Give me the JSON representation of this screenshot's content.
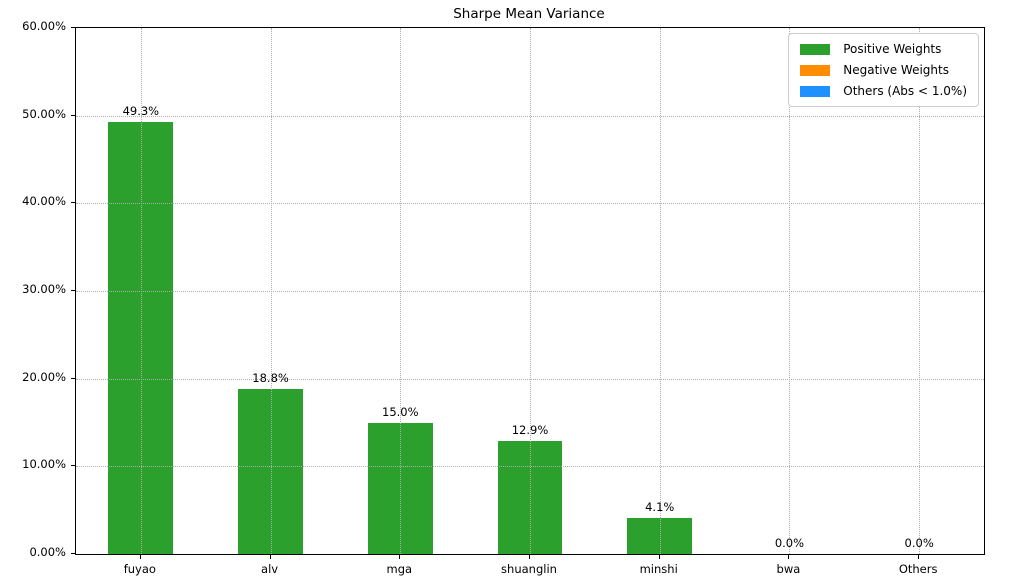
{
  "colors": {
    "positive": "#2ca02c",
    "negative": "#ff8c00",
    "others": "#1e90ff",
    "grid": "#b0b0b0",
    "axis": "#000000",
    "background": "#ffffff"
  },
  "chart_data": {
    "type": "bar",
    "title": "Sharpe Mean Variance",
    "xlabel": "",
    "ylabel": "",
    "categories": [
      "fuyao",
      "alv",
      "mga",
      "shuanglin",
      "minshi",
      "bwa",
      "Others"
    ],
    "values": [
      49.3,
      18.8,
      15.0,
      12.9,
      4.1,
      0.0,
      0.0
    ],
    "value_labels": [
      "49.3%",
      "18.8%",
      "15.0%",
      "12.9%",
      "4.1%",
      "0.0%",
      "0.0%"
    ],
    "series_color_key": "positive",
    "ylim": [
      0,
      60
    ],
    "ytick_values": [
      0,
      10,
      20,
      30,
      40,
      50,
      60
    ],
    "ytick_labels": [
      "0.00%",
      "10.00%",
      "20.00%",
      "30.00%",
      "40.00%",
      "50.00%",
      "60.00%"
    ],
    "grid": true,
    "grid_style": "dotted",
    "legend": {
      "position": "upper-right",
      "entries": [
        {
          "label": "Positive Weights",
          "color_key": "positive"
        },
        {
          "label": "Negative Weights",
          "color_key": "negative"
        },
        {
          "label": "Others (Abs < 1.0%)",
          "color_key": "others"
        }
      ]
    }
  }
}
